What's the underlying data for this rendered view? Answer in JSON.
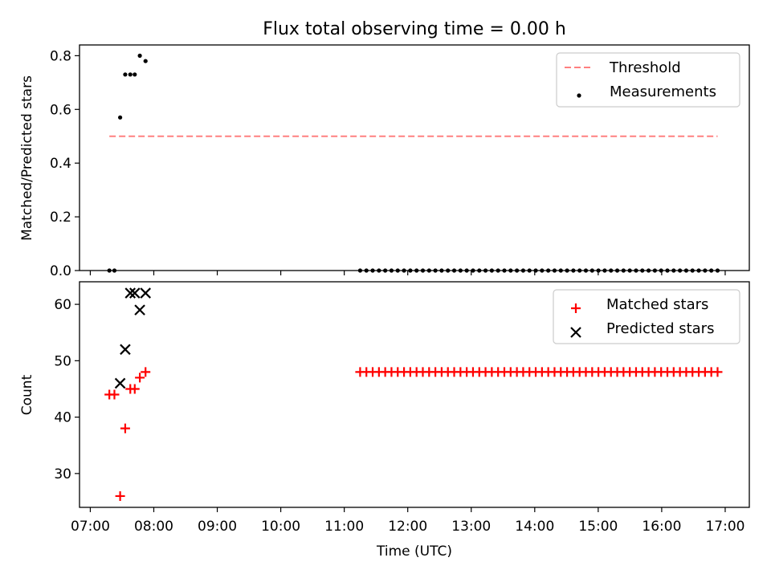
{
  "chart_data": {
    "type": "scatter",
    "title": "Flux total observing time = 0.00 h",
    "xlabel": "Time (UTC)",
    "x_tick_labels": [
      "07:00",
      "08:00",
      "09:00",
      "10:00",
      "11:00",
      "12:00",
      "13:00",
      "14:00",
      "15:00",
      "16:00",
      "17:00"
    ],
    "x_tick_hours": [
      7,
      8,
      9,
      10,
      11,
      12,
      13,
      14,
      15,
      16,
      17
    ],
    "xlim": [
      6.83,
      17.38
    ],
    "panels": [
      {
        "ylabel": "Matched/Predicted stars",
        "ylim": [
          0,
          0.84
        ],
        "y_ticks": [
          0.0,
          0.2,
          0.4,
          0.6,
          0.8
        ],
        "y_tick_labels": [
          "0.0",
          "0.2",
          "0.4",
          "0.6",
          "0.8"
        ],
        "legend_position": "upper right",
        "series": [
          {
            "name": "Threshold",
            "kind": "line",
            "style": "dashed",
            "color": "#ff8080",
            "x": [
              7.3,
              16.88
            ],
            "y": [
              0.5,
              0.5
            ]
          },
          {
            "name": "Measurements",
            "kind": "scatter",
            "marker": "dot",
            "color": "#000000",
            "x": [
              7.3,
              7.38,
              7.47,
              7.55,
              7.63,
              7.7,
              7.78,
              7.87
            ],
            "y": [
              0.0,
              0.0,
              0.57,
              0.73,
              0.73,
              0.73,
              0.8,
              0.78
            ],
            "regular_run": {
              "x_start": 11.25,
              "x_end": 16.88,
              "count": 58,
              "y": 0.0
            }
          }
        ]
      },
      {
        "ylabel": "Count",
        "ylim": [
          24,
          64
        ],
        "y_ticks": [
          30,
          40,
          50,
          60
        ],
        "y_tick_labels": [
          "30",
          "40",
          "50",
          "60"
        ],
        "legend_position": "upper right",
        "series": [
          {
            "name": "Matched stars",
            "kind": "scatter",
            "marker": "plus",
            "color": "#ff0000",
            "x": [
              7.3,
              7.38,
              7.47,
              7.55,
              7.63,
              7.7,
              7.78,
              7.87
            ],
            "y": [
              44,
              44,
              26,
              38,
              45,
              45,
              47,
              48
            ],
            "regular_run": {
              "x_start": 11.25,
              "x_end": 16.88,
              "count": 58,
              "y": 48
            }
          },
          {
            "name": "Predicted stars",
            "kind": "scatter",
            "marker": "x",
            "color": "#000000",
            "x": [
              7.47,
              7.55,
              7.63,
              7.7,
              7.78,
              7.87
            ],
            "y": [
              46,
              52,
              62,
              62,
              59,
              62
            ]
          }
        ]
      }
    ]
  }
}
